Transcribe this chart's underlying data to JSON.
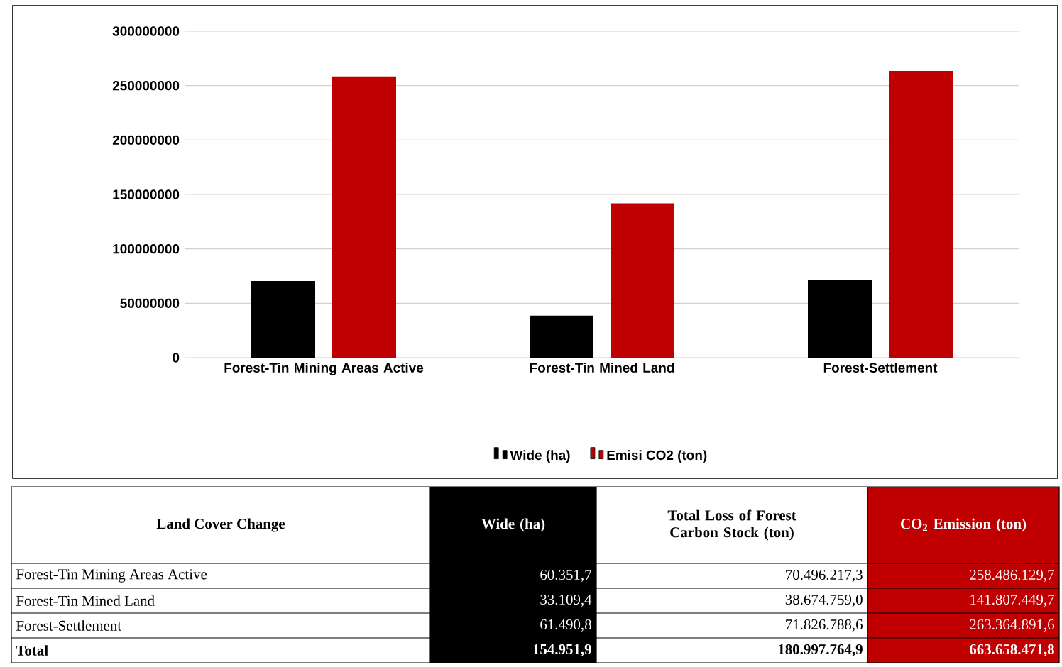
{
  "chart_data": [
    {
      "type": "bar",
      "categories": [
        "Forest-Tin Mining Areas Active",
        "Forest-Tin Mined Land",
        "Forest-Settlement"
      ],
      "series": [
        {
          "name": "Wide (ha)",
          "color": "#000000",
          "values": [
            70500000,
            38700000,
            71800000
          ]
        },
        {
          "name": "Emisi CO2 (ton)",
          "color": "#c00000",
          "values": [
            258500000,
            141800000,
            263400000
          ]
        }
      ],
      "ylim": [
        0,
        300000000
      ],
      "yticks": [
        0,
        50000000,
        100000000,
        150000000,
        200000000,
        250000000,
        300000000
      ],
      "grid": "y",
      "legend": "bottom"
    },
    {
      "type": "other",
      "annotations": [
        "Land Cover Change"
      ],
      "categories": [
        "Forest-Tin Mining Areas Active",
        "Forest-Tin Mined Land",
        "Forest-Settlement",
        "Total"
      ],
      "series": [
        {
          "name": "Wide (ha)",
          "color": "#000000",
          "values": [
            60351.7,
            33109.4,
            61490.8,
            154951.9
          ],
          "value_labels": [
            "60.351,7",
            "33.109,4",
            "61.490,8",
            "154.951,9"
          ]
        },
        {
          "name": "Total Loss of Forest Carbon Stock (ton)",
          "values": [
            70496217.3,
            38674759.0,
            71826788.6,
            180997764.9
          ],
          "value_labels": [
            "70.496.217,3",
            "38.674.759,0",
            "71.826.788,6",
            "180.997.764,9"
          ]
        },
        {
          "name": "CO$_{2}$ Emission (ton)",
          "color": "#c00000",
          "values": [
            258486129.7,
            141807449.7,
            263364891.6,
            663658471.8
          ],
          "value_labels": [
            "258.486.129,7",
            "141.807.449,7",
            "263.364.891,6",
            "663.658.471,8"
          ]
        }
      ]
    }
  ]
}
